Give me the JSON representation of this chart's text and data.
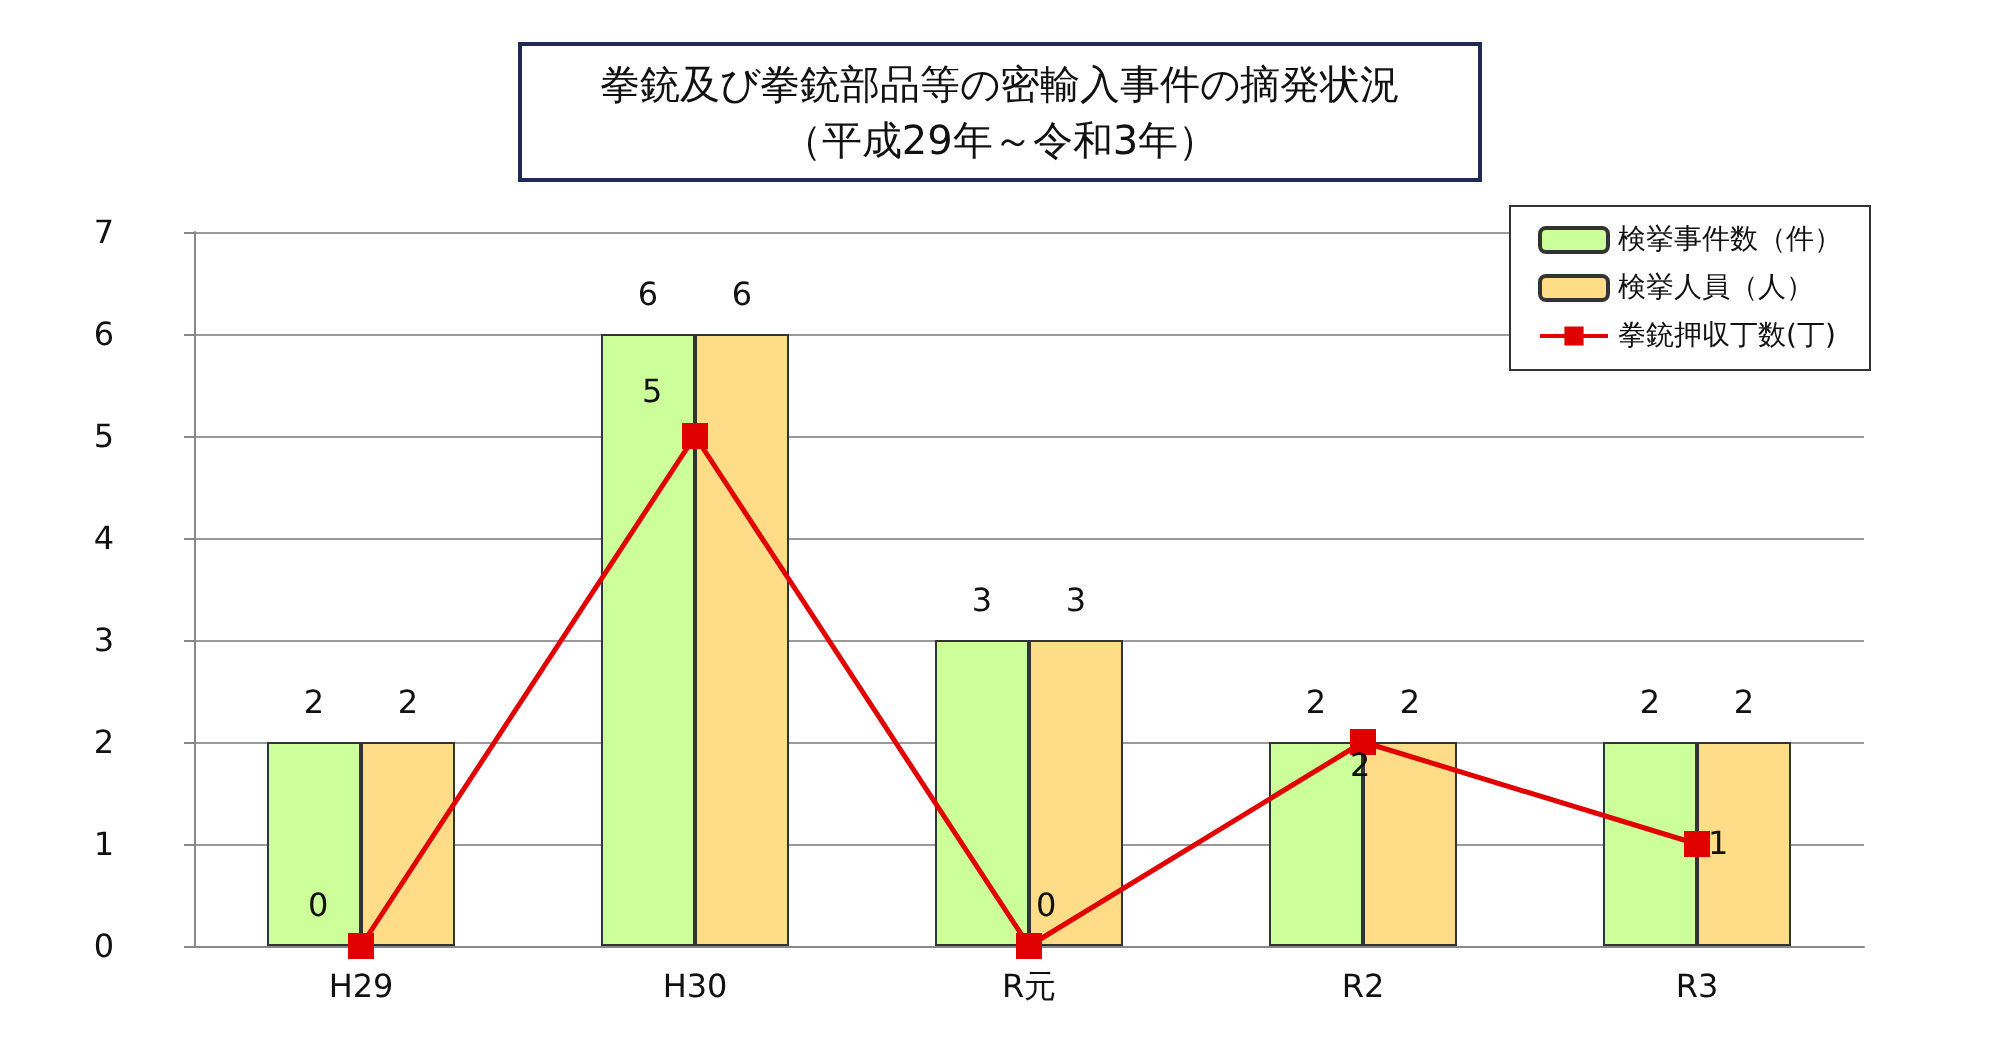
{
  "chart_data": {
    "type": "bar",
    "title": "拳銃及び拳銃部品等の密輸入事件の摘発状況",
    "subtitle": "（平成29年～令和3年）",
    "categories": [
      "H29",
      "H30",
      "R元",
      "R2",
      "R3"
    ],
    "series": [
      {
        "name": "検挙事件数（件）",
        "color": "#ccff99",
        "values": [
          2,
          6,
          3,
          2,
          2
        ]
      },
      {
        "name": "検挙人員（人）",
        "color": "#ffdd88",
        "values": [
          2,
          6,
          3,
          2,
          2
        ]
      },
      {
        "name": "拳銃押収丁数(丁)",
        "type": "line",
        "color": "#e00000",
        "values": [
          0,
          5,
          0,
          2,
          1
        ],
        "marker": "square"
      }
    ],
    "ylim": [
      0,
      7
    ],
    "yticks": [
      0,
      1,
      2,
      3,
      4,
      5,
      6,
      7
    ],
    "grid": "y",
    "legend": "top right",
    "data_labels": true
  }
}
